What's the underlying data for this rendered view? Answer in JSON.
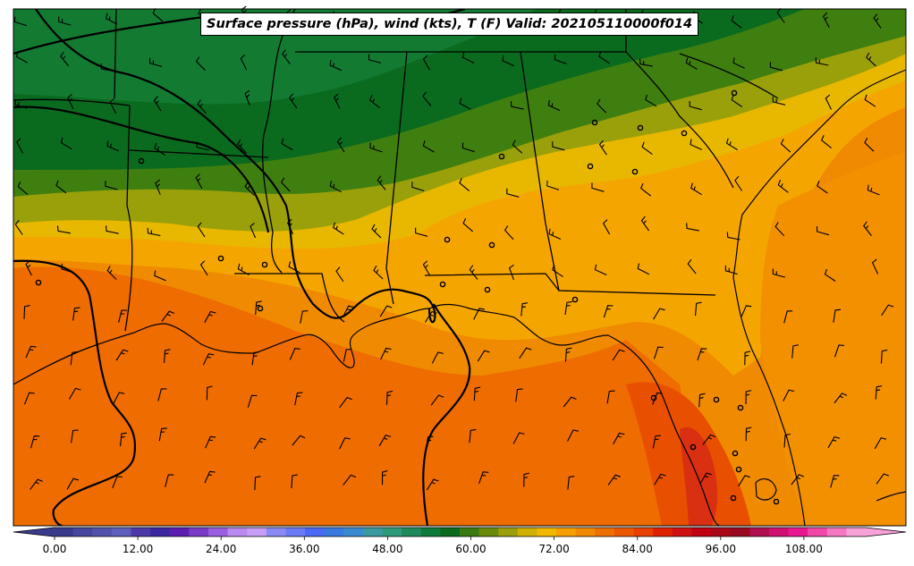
{
  "title": "Surface pressure (hPa), wind (kts), T (F) Valid: 202105110000f014",
  "colorbar": {
    "tick_labels": [
      "0.00",
      "12.00",
      "24.00",
      "36.00",
      "48.00",
      "60.00",
      "72.00",
      "84.00",
      "96.00",
      "108.00"
    ],
    "colors": [
      "#3a3a8c",
      "#46469c",
      "#5252ac",
      "#5e5ebc",
      "#4b3aa6",
      "#3b26a0",
      "#5a1fb0",
      "#7a3cc8",
      "#9a5ee0",
      "#b98af0",
      "#c79df5",
      "#8a8af5",
      "#6a7af5",
      "#4a6af5",
      "#3a7ae0",
      "#3a8ad0",
      "#3a9aa0",
      "#2e9a7a",
      "#1e8a5a",
      "#0e7a3a",
      "#0a6a1e",
      "#3a7a12",
      "#6a8a0a",
      "#9aa00a",
      "#d0b000",
      "#f0b800",
      "#f5a000",
      "#f08a00",
      "#ee7000",
      "#ec5800",
      "#e84000",
      "#e02000",
      "#d01010",
      "#c00010",
      "#aa0818",
      "#980820",
      "#b01050",
      "#d01070",
      "#e81890",
      "#f048a8",
      "#f478c0",
      "#f8a0d8"
    ]
  },
  "map_colors": {
    "dark_green": "#0a6a1e",
    "mid_green": "#137a32",
    "olive_green": "#3f7f10",
    "olive": "#9aa00a",
    "yellow": "#e8b800",
    "light_orange": "#f5a500",
    "orange": "#f08a00",
    "dark_orange": "#ee6e00",
    "red_orange": "#e85000",
    "lines": "#000000"
  }
}
